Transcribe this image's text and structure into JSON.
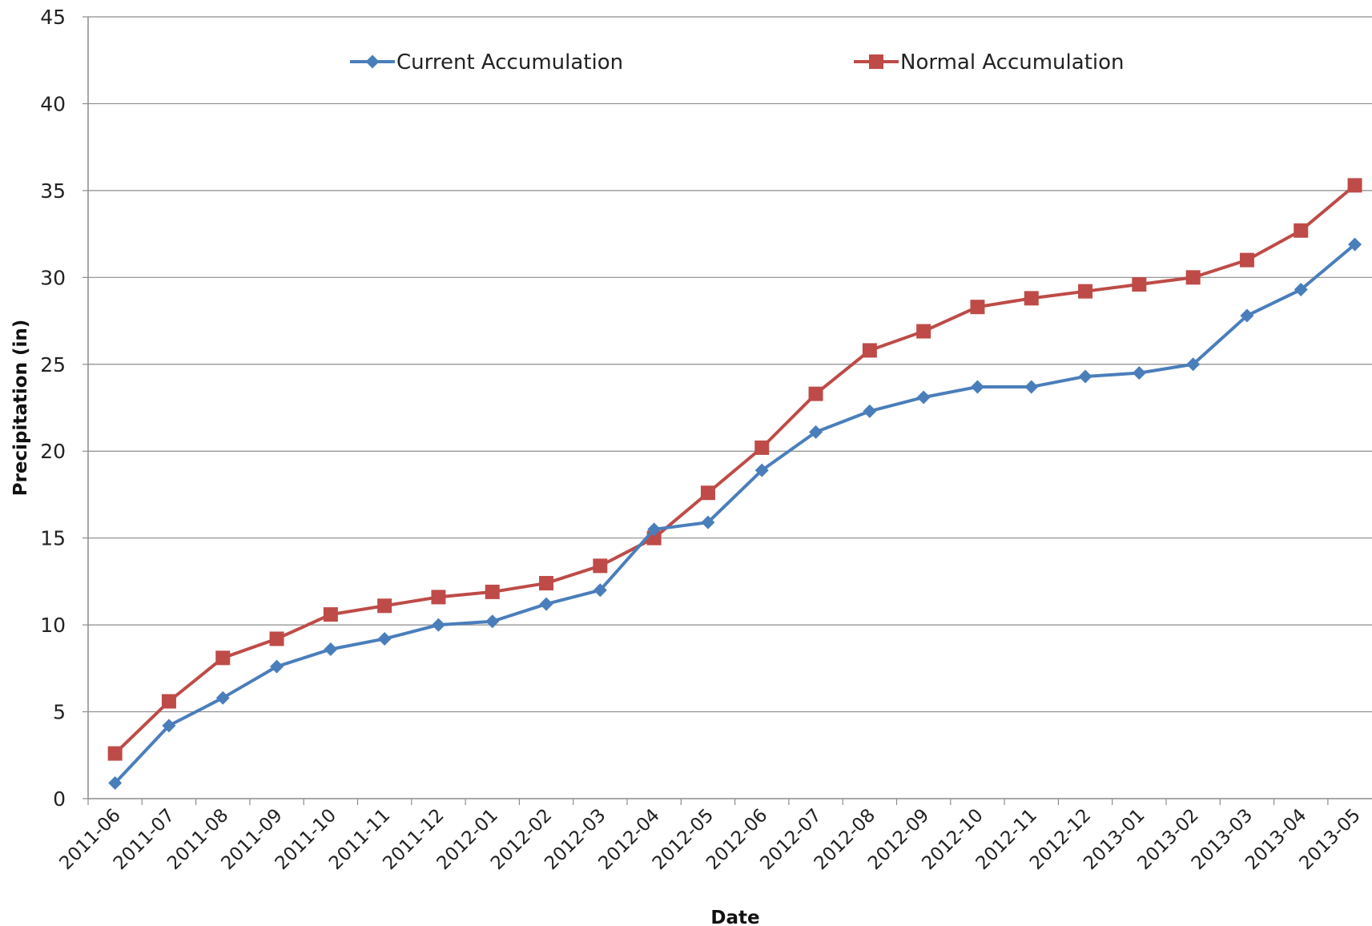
{
  "chart_data": {
    "type": "line",
    "title": "",
    "xlabel": "Date",
    "ylabel": "Precipitation (in)",
    "ylim": [
      0,
      45
    ],
    "yticks": [
      0,
      5,
      10,
      15,
      20,
      25,
      30,
      35,
      40,
      45
    ],
    "grid": "horizontal",
    "legend_position": "top",
    "categories": [
      "2011-06",
      "2011-07",
      "2011-08",
      "2011-09",
      "2011-10",
      "2011-11",
      "2011-12",
      "2012-01",
      "2012-02",
      "2012-03",
      "2012-04",
      "2012-05",
      "2012-06",
      "2012-07",
      "2012-08",
      "2012-09",
      "2012-10",
      "2012-11",
      "2012-12",
      "2013-01",
      "2013-02",
      "2013-03",
      "2013-04",
      "2013-05"
    ],
    "series": [
      {
        "name": "Current Accumulation",
        "color": "#4a7ebb",
        "marker": "diamond",
        "values": [
          0.9,
          4.2,
          5.8,
          7.6,
          8.6,
          9.2,
          10.0,
          10.2,
          11.2,
          12.0,
          15.5,
          15.9,
          18.9,
          21.1,
          22.3,
          23.1,
          23.7,
          23.7,
          24.3,
          24.5,
          25.0,
          27.8,
          29.3,
          31.9
        ]
      },
      {
        "name": "Normal Accumulation",
        "color": "#be4b48",
        "marker": "square",
        "values": [
          2.6,
          5.6,
          8.1,
          9.2,
          10.6,
          11.1,
          11.6,
          11.9,
          12.4,
          13.4,
          15.0,
          17.6,
          20.2,
          23.3,
          25.8,
          26.9,
          28.3,
          28.8,
          29.2,
          29.6,
          30.0,
          31.0,
          32.7,
          35.3
        ]
      }
    ]
  }
}
